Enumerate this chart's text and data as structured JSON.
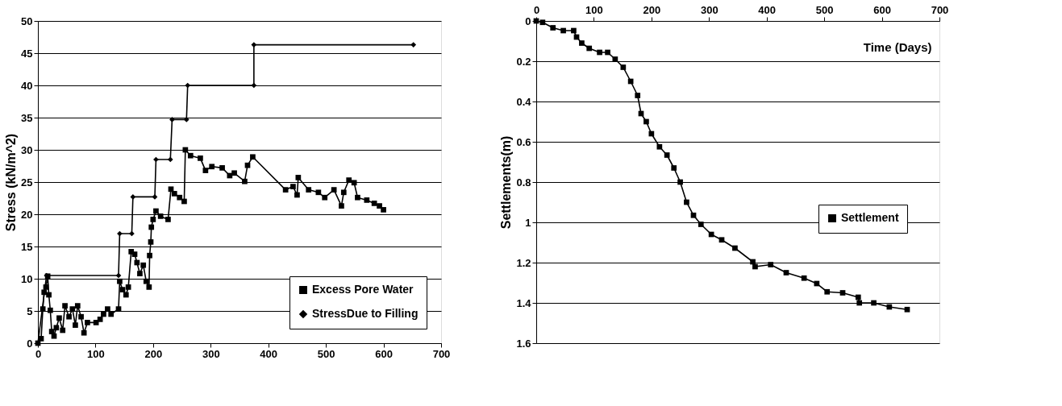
{
  "chart_data": [
    {
      "type": "line",
      "ylabel": "Stress (kN/m^2)",
      "xlim": [
        0,
        700
      ],
      "xticks": [
        0,
        100,
        200,
        300,
        400,
        500,
        600,
        700
      ],
      "ylim": [
        0,
        50
      ],
      "yticks": [
        0,
        5,
        10,
        15,
        20,
        25,
        30,
        35,
        40,
        45,
        50
      ],
      "grid": "y",
      "legend": "bottom right",
      "series": [
        {
          "name": "Excess Pore Water",
          "color": "#000000",
          "marker": "square",
          "x": [
            0,
            5.6,
            8.6,
            10.8,
            14,
            17,
            19,
            21.5,
            24,
            28,
            32,
            37,
            43,
            47,
            54,
            60,
            65,
            69,
            75,
            80,
            86,
            101,
            108,
            114,
            121,
            127,
            140,
            142,
            147,
            153,
            157,
            162,
            168,
            172,
            177,
            183,
            188,
            193,
            194,
            196,
            197,
            200,
            205,
            213,
            226,
            231,
            237,
            246,
            254,
            256,
            265,
            282,
            291,
            302,
            320,
            333,
            341,
            359,
            364,
            373,
            430,
            443,
            450,
            452,
            470,
            487,
            498,
            514,
            527,
            531,
            540,
            549,
            555,
            571,
            584,
            593,
            600
          ],
          "values": [
            0,
            0.7,
            5.3,
            7.9,
            8.7,
            10.4,
            7.5,
            5.1,
            1.8,
            1.1,
            2.4,
            3.9,
            2,
            5.8,
            4.1,
            5.3,
            2.8,
            5.8,
            4.1,
            1.6,
            3.2,
            3.2,
            3.7,
            4.5,
            5.3,
            4.5,
            5.3,
            9.6,
            8.3,
            7.5,
            8.7,
            14.2,
            13.8,
            12.5,
            10.8,
            12.1,
            9.6,
            8.7,
            13.6,
            15.7,
            18,
            19.2,
            20.5,
            19.7,
            19.2,
            23.9,
            23.2,
            22.6,
            22,
            30,
            29.1,
            28.7,
            26.8,
            27.4,
            27.2,
            26,
            26.4,
            25.1,
            27.6,
            28.9,
            23.8,
            24.3,
            23,
            25.7,
            23.8,
            23.4,
            22.6,
            23.8,
            21.3,
            23.4,
            25.3,
            24.9,
            22.6,
            22.2,
            21.7,
            21.3,
            20.7
          ]
        },
        {
          "name": "StressDue to Filling",
          "color": "#000000",
          "marker": "diamond",
          "x": [
            0,
            15,
            140,
            142,
            163,
            165,
            203,
            205,
            230,
            233,
            258,
            260,
            375,
            375,
            652
          ],
          "values": [
            0,
            10.5,
            10.5,
            17,
            17,
            22.7,
            22.7,
            28.5,
            28.5,
            34.7,
            34.7,
            40,
            40,
            46.3,
            46.3
          ]
        }
      ]
    },
    {
      "type": "line",
      "ylabel": "Settlements(m)",
      "xlabel": "Time (Days)",
      "xlim": [
        0,
        700
      ],
      "xticks": [
        0,
        100,
        200,
        300,
        400,
        500,
        600,
        700
      ],
      "ylim": [
        1.6,
        0
      ],
      "yticks": [
        0,
        0.2,
        0.4,
        0.6,
        0.8,
        1,
        1.2,
        1.4,
        1.6
      ],
      "grid": "y",
      "legend": "right",
      "series": [
        {
          "name": "Settlement",
          "color": "#000000",
          "marker": "square",
          "x": [
            0,
            11,
            29,
            47,
            65,
            70,
            79,
            92,
            110,
            124,
            137,
            151,
            164,
            176,
            182,
            191,
            200,
            214,
            227,
            239,
            250,
            261,
            273,
            286,
            304,
            322,
            345,
            376,
            380,
            407,
            434,
            465,
            487,
            505,
            532,
            559,
            561,
            586,
            613,
            644
          ],
          "values": [
            0,
            0.007,
            0.034,
            0.048,
            0.048,
            0.08,
            0.11,
            0.136,
            0.156,
            0.156,
            0.19,
            0.23,
            0.3,
            0.37,
            0.46,
            0.5,
            0.56,
            0.625,
            0.666,
            0.73,
            0.8,
            0.9,
            0.965,
            1.01,
            1.06,
            1.087,
            1.128,
            1.196,
            1.22,
            1.21,
            1.25,
            1.277,
            1.304,
            1.345,
            1.35,
            1.372,
            1.4,
            1.4,
            1.42,
            1.433
          ]
        }
      ]
    }
  ]
}
